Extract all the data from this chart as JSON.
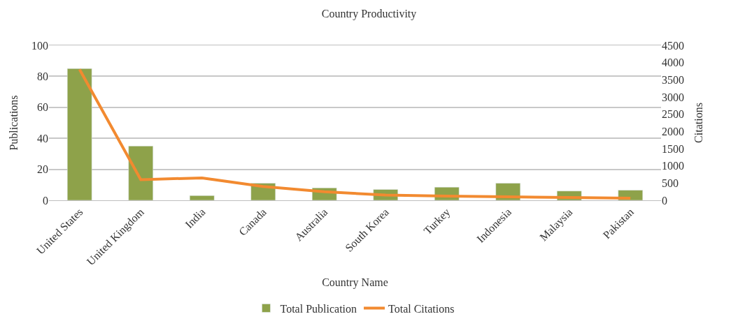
{
  "chart_data": {
    "type": "bar",
    "title": "Country Productivity",
    "xlabel": "Country Name",
    "ylabel": "Publications",
    "y2label": "Citations",
    "categories": [
      "United States",
      "United Kingdom",
      "India",
      "Canada",
      "Australia",
      "South Korea",
      "Turkey",
      "Indonesia",
      "Malaysia",
      "Pakistan"
    ],
    "series": [
      {
        "name": "Total Publication",
        "color": "#8ea24a",
        "values": [
          85,
          35,
          3,
          11,
          8,
          7,
          8.5,
          11,
          6,
          6.5
        ]
      },
      {
        "name": "Total Citations",
        "type": "line",
        "axis": "y2",
        "color": "#f28a30",
        "values": [
          3800,
          600,
          650,
          400,
          250,
          150,
          120,
          100,
          80,
          60
        ]
      }
    ],
    "ylim": [
      0,
      100
    ],
    "yticks": [
      0,
      20,
      40,
      60,
      80,
      100
    ],
    "y2lim": [
      0,
      4500
    ],
    "y2ticks": [
      0,
      500,
      1000,
      1500,
      2000,
      2500,
      3000,
      3500,
      4000,
      4500
    ],
    "grid": "y",
    "legend": "bottom",
    "marker": "none"
  }
}
